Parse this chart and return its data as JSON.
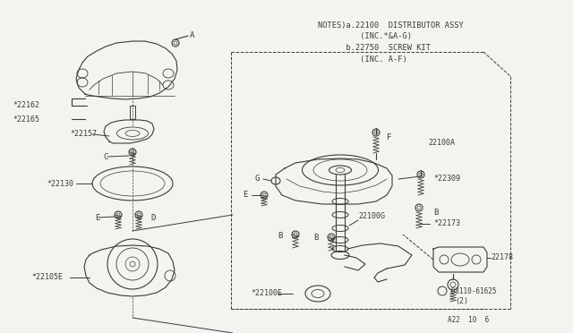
{
  "bg_color": "#f5f3ef",
  "line_color": "#3a3a3a",
  "text_color": "#3a3a3a",
  "notes_lines": [
    "NOTES)a.22100  DISTRIBUTOR ASSY",
    "         (INC.*&A-G)",
    "      b.22750  SCREW KIT",
    "         (INC. A-F)"
  ],
  "footer": "A22  10  6"
}
